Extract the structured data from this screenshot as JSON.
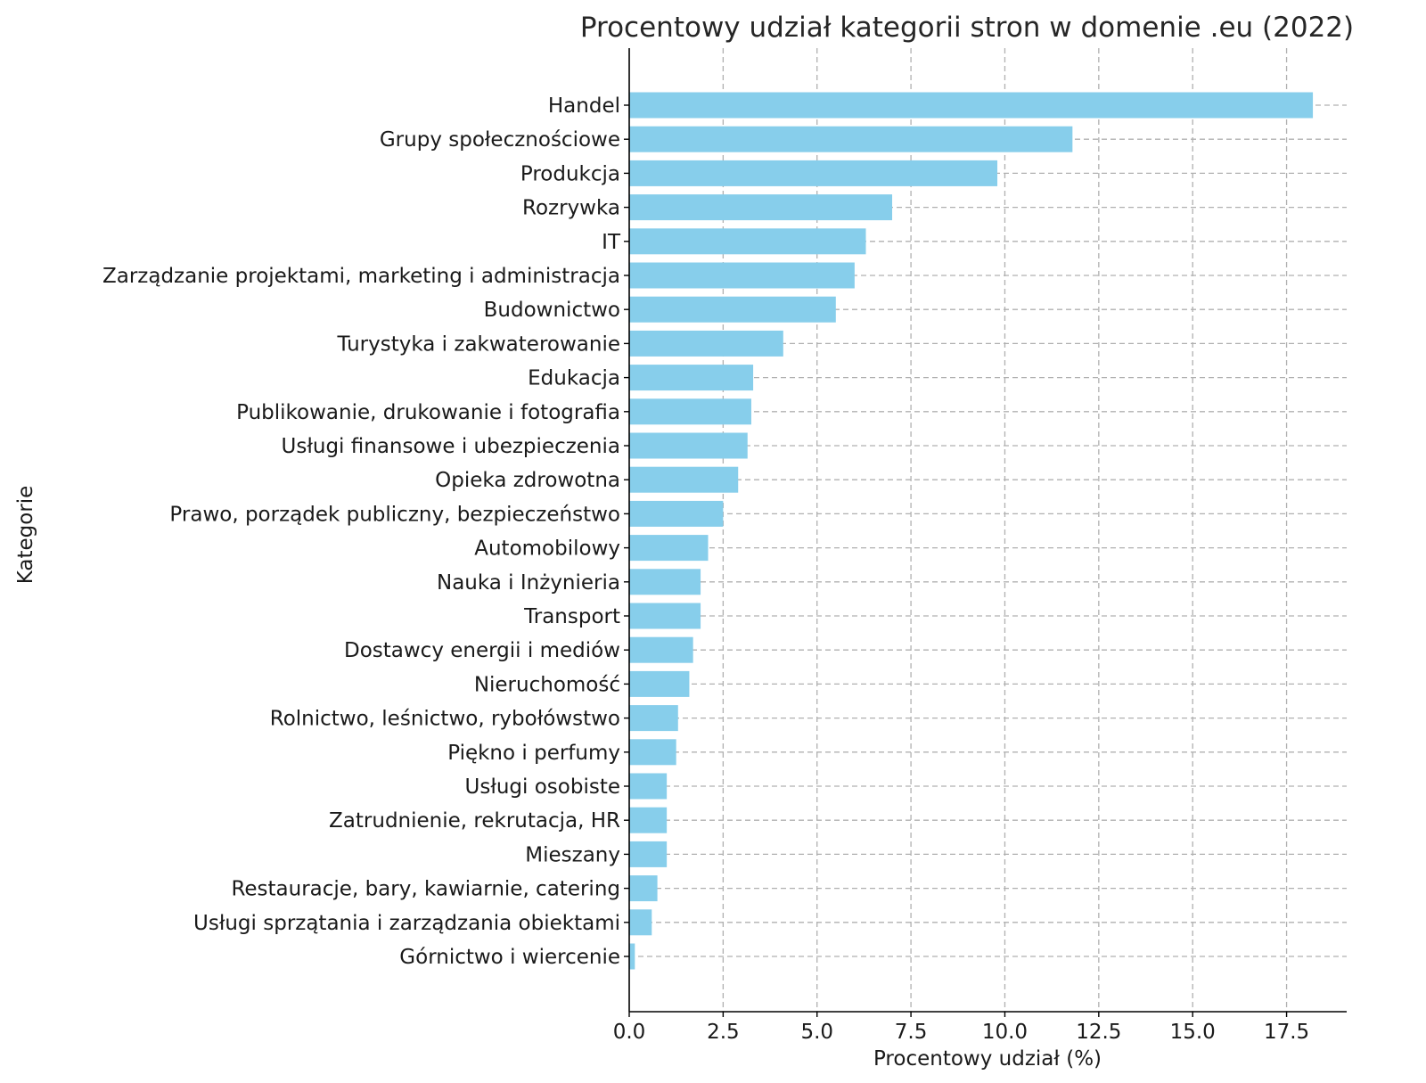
{
  "chart_data": {
    "type": "bar",
    "orientation": "horizontal",
    "title": "Procentowy udział kategorii stron w domenie .eu (2022)",
    "xlabel": "Procentowy udział (%)",
    "ylabel": "Kategorie",
    "xlim": [
      0,
      19.1
    ],
    "xticks": [
      "0.0",
      "2.5",
      "5.0",
      "7.5",
      "10.0",
      "12.5",
      "15.0",
      "17.5"
    ],
    "grid": true,
    "bar_color": "#87CEEB",
    "categories": [
      "Handel",
      "Grupy społecznościowe",
      "Produkcja",
      "Rozrywka",
      "IT",
      "Zarządzanie projektami, marketing i administracja",
      "Budownictwo",
      "Turystyka i zakwaterowanie",
      "Edukacja",
      "Publikowanie, drukowanie i fotografia",
      "Usługi finansowe i ubezpieczenia",
      "Opieka zdrowotna",
      "Prawo, porządek publiczny, bezpieczeństwo",
      "Automobilowy",
      "Nauka i Inżynieria",
      "Transport",
      "Dostawcy energii i mediów",
      "Nieruchomość",
      "Rolnictwo, leśnictwo, rybołówstwo",
      "Piękno i perfumy",
      "Usługi osobiste",
      "Zatrudnienie, rekrutacja, HR",
      "Mieszany",
      "Restauracje, bary, kawiarnie, catering",
      "Usługi sprzątania i zarządzania obiektami",
      "Górnictwo i wiercenie"
    ],
    "values": [
      18.2,
      11.8,
      9.8,
      7.0,
      6.3,
      6.0,
      5.5,
      4.1,
      3.3,
      3.25,
      3.15,
      2.9,
      2.5,
      2.1,
      1.9,
      1.9,
      1.7,
      1.6,
      1.3,
      1.25,
      1.0,
      1.0,
      1.0,
      0.75,
      0.6,
      0.15
    ]
  }
}
